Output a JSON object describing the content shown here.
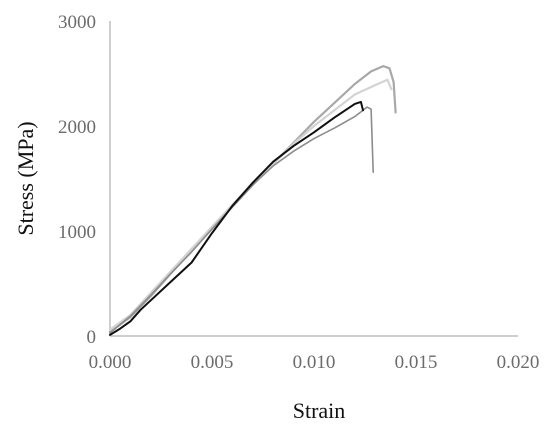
{
  "chart_data": {
    "type": "line",
    "title": "",
    "xlabel": "Strain",
    "ylabel": "Stress (MPa)",
    "xlim": [
      0,
      0.02
    ],
    "ylim": [
      0,
      3000
    ],
    "x_ticks": [
      0,
      0.005,
      0.01,
      0.015,
      0.02
    ],
    "x_tick_labels": [
      "0.000",
      "0.005",
      "0.010",
      "0.015",
      "0.020"
    ],
    "y_ticks": [
      0,
      1000,
      2000,
      3000
    ],
    "y_tick_labels": [
      "0",
      "1000",
      "2000",
      "3000"
    ],
    "grid": false,
    "legend": "none",
    "series": [
      {
        "color": "#a8a8a8",
        "width": 2.2,
        "points": [
          [
            0,
            40
          ],
          [
            0.001,
            180
          ],
          [
            0.002,
            380
          ],
          [
            0.003,
            600
          ],
          [
            0.004,
            810
          ],
          [
            0.005,
            1020
          ],
          [
            0.006,
            1230
          ],
          [
            0.007,
            1440
          ],
          [
            0.008,
            1640
          ],
          [
            0.009,
            1840
          ],
          [
            0.01,
            2040
          ],
          [
            0.011,
            2220
          ],
          [
            0.012,
            2400
          ],
          [
            0.0128,
            2520
          ],
          [
            0.0134,
            2570
          ],
          [
            0.0137,
            2550
          ],
          [
            0.0139,
            2420
          ],
          [
            0.014,
            2130
          ]
        ]
      },
      {
        "color": "#d3d3d3",
        "width": 2.2,
        "points": [
          [
            0,
            60
          ],
          [
            0.001,
            200
          ],
          [
            0.002,
            410
          ],
          [
            0.003,
            620
          ],
          [
            0.004,
            830
          ],
          [
            0.005,
            1040
          ],
          [
            0.006,
            1250
          ],
          [
            0.007,
            1450
          ],
          [
            0.008,
            1640
          ],
          [
            0.009,
            1830
          ],
          [
            0.01,
            2000
          ],
          [
            0.011,
            2150
          ],
          [
            0.012,
            2300
          ],
          [
            0.013,
            2390
          ],
          [
            0.0136,
            2440
          ],
          [
            0.0138,
            2350
          ]
        ]
      },
      {
        "color": "#8c8c8c",
        "width": 1.6,
        "points": [
          [
            0,
            30
          ],
          [
            0.001,
            190
          ],
          [
            0.002,
            390
          ],
          [
            0.003,
            600
          ],
          [
            0.004,
            800
          ],
          [
            0.005,
            1020
          ],
          [
            0.006,
            1230
          ],
          [
            0.007,
            1440
          ],
          [
            0.008,
            1620
          ],
          [
            0.009,
            1760
          ],
          [
            0.01,
            1880
          ],
          [
            0.011,
            1980
          ],
          [
            0.012,
            2090
          ],
          [
            0.0126,
            2180
          ],
          [
            0.0128,
            2160
          ],
          [
            0.0129,
            1560
          ]
        ]
      },
      {
        "color": "#101010",
        "width": 2.0,
        "points": [
          [
            0,
            10
          ],
          [
            0.0005,
            70
          ],
          [
            0.001,
            140
          ],
          [
            0.0015,
            250
          ],
          [
            0.002,
            340
          ],
          [
            0.003,
            520
          ],
          [
            0.004,
            700
          ],
          [
            0.005,
            980
          ],
          [
            0.006,
            1240
          ],
          [
            0.007,
            1460
          ],
          [
            0.008,
            1660
          ],
          [
            0.009,
            1810
          ],
          [
            0.01,
            1940
          ],
          [
            0.011,
            2080
          ],
          [
            0.012,
            2210
          ],
          [
            0.0123,
            2230
          ],
          [
            0.0124,
            2150
          ]
        ]
      }
    ]
  }
}
